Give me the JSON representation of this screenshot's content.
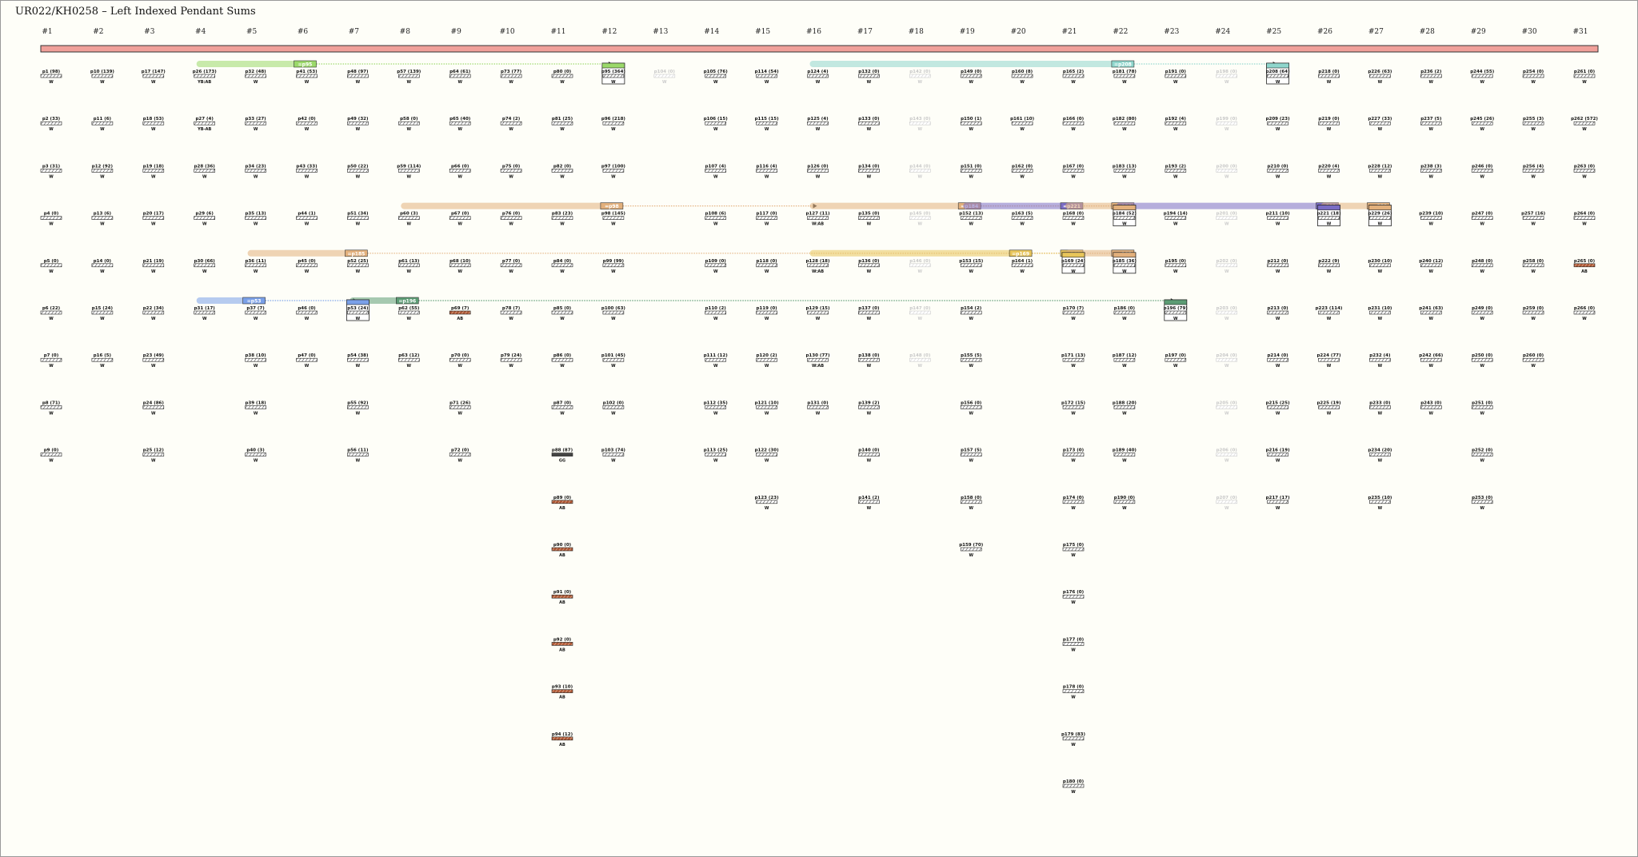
{
  "title": "UR022/KH0258 – Left Indexed Pendant Sums",
  "primary_color": "#f0a09a",
  "col_headers": [
    "#1",
    "#2",
    "#3",
    "#4",
    "#5",
    "#6",
    "#7",
    "#8",
    "#9",
    "#10",
    "#11",
    "#12",
    "#13",
    "#14",
    "#15",
    "#16",
    "#17",
    "#18",
    "#19",
    "#20",
    "#21",
    "#22",
    "#23",
    "#24",
    "#25",
    "#26",
    "#27",
    "#28",
    "#29",
    "#30",
    "#31"
  ],
  "columns": [
    [
      {
        "l": "p1 (98)",
        "c": "w"
      },
      {
        "l": "p2 (33)",
        "c": "w"
      },
      {
        "l": "p3 (31)",
        "c": "w"
      },
      {
        "l": "p4 (0)",
        "c": "w"
      },
      {
        "l": "p5 (0)",
        "c": "w"
      },
      {
        "l": "p6 (22)",
        "c": "w"
      },
      {
        "l": "p7 (0)",
        "c": "w"
      },
      {
        "l": "p8 (71)",
        "c": "w"
      },
      {
        "l": "p9 (0)",
        "c": "w"
      }
    ],
    [
      {
        "l": "p10 (139)",
        "c": "w"
      },
      {
        "l": "p11 (6)",
        "c": "w"
      },
      {
        "l": "p12 (92)",
        "c": "w"
      },
      {
        "l": "p13 (6)",
        "c": "w"
      },
      {
        "l": "p14 (0)",
        "c": "w"
      },
      {
        "l": "p15 (24)",
        "c": "w"
      },
      {
        "l": "p16 (5)",
        "c": "w"
      }
    ],
    [
      {
        "l": "p17 (147)",
        "c": "w"
      },
      {
        "l": "p18 (53)",
        "c": "w"
      },
      {
        "l": "p19 (18)",
        "c": "w"
      },
      {
        "l": "p20 (17)",
        "c": "w"
      },
      {
        "l": "p21 (19)",
        "c": "w"
      },
      {
        "l": "p22 (34)",
        "c": "w"
      },
      {
        "l": "p23 (49)",
        "c": "w"
      },
      {
        "l": "p24 (86)",
        "c": "w"
      },
      {
        "l": "p25 (12)",
        "c": "w"
      }
    ],
    [
      {
        "l": "p26 (173)",
        "c": "YB:AB"
      },
      {
        "l": "p27 (4)",
        "c": "YB-AB"
      },
      {
        "l": "p28 (36)",
        "c": "w"
      },
      {
        "l": "p29 (6)",
        "c": "w"
      },
      {
        "l": "p30 (66)",
        "c": "w"
      },
      {
        "l": "p31 (17)",
        "c": "w"
      }
    ],
    [
      {
        "l": "p32 (48)",
        "c": "w"
      },
      {
        "l": "p33 (27)",
        "c": "w"
      },
      {
        "l": "p34 (23)",
        "c": "w"
      },
      {
        "l": "p35 (13)",
        "c": "w"
      },
      {
        "l": "p36 (11)",
        "c": "w"
      },
      {
        "l": "p37 (7)",
        "c": "w"
      },
      {
        "l": "p38 (10)",
        "c": "w"
      },
      {
        "l": "p39 (18)",
        "c": "w"
      },
      {
        "l": "p40 (3)",
        "c": "w"
      }
    ],
    [
      {
        "l": "p41 (53)",
        "c": "w"
      },
      {
        "l": "p42 (0)",
        "c": "w"
      },
      {
        "l": "p43 (33)",
        "c": "w"
      },
      {
        "l": "p44 (1)",
        "c": "w"
      },
      {
        "l": "p45 (0)",
        "c": "w"
      },
      {
        "l": "p46 (0)",
        "c": "w"
      },
      {
        "l": "p47 (0)",
        "c": "w"
      }
    ],
    [
      {
        "l": "p48 (97)",
        "c": "w"
      },
      {
        "l": "p49 (32)",
        "c": "w"
      },
      {
        "l": "p50 (22)",
        "c": "w"
      },
      {
        "l": "p51 (34)",
        "c": "w"
      },
      {
        "l": "p52 (25)",
        "c": "w"
      },
      {
        "l": "p53 (24)",
        "c": "w"
      },
      {
        "l": "p54 (38)",
        "c": "w"
      },
      {
        "l": "p55 (92)",
        "c": "w"
      },
      {
        "l": "p56 (11)",
        "c": "w"
      }
    ],
    [
      {
        "l": "p57 (139)",
        "c": "w"
      },
      {
        "l": "p58 (0)",
        "c": "w"
      },
      {
        "l": "p59 (114)",
        "c": "w"
      },
      {
        "l": "p60 (3)",
        "c": "w"
      },
      {
        "l": "p61 (13)",
        "c": "w"
      },
      {
        "l": "p62 (55)",
        "c": "w"
      },
      {
        "l": "p63 (12)",
        "c": "w"
      }
    ],
    [
      {
        "l": "p64 (61)",
        "c": "w"
      },
      {
        "l": "p65 (40)",
        "c": "w"
      },
      {
        "l": "p66 (0)",
        "c": "w"
      },
      {
        "l": "p67 (0)",
        "c": "w"
      },
      {
        "l": "p68 (10)",
        "c": "w"
      },
      {
        "l": "p69 (7)",
        "c": "AB"
      },
      {
        "l": "p70 (0)",
        "c": "w"
      },
      {
        "l": "p71 (26)",
        "c": "w"
      },
      {
        "l": "p72 (0)",
        "c": "w"
      }
    ],
    [
      {
        "l": "p73 (77)",
        "c": "w"
      },
      {
        "l": "p74 (2)",
        "c": "w"
      },
      {
        "l": "p75 (0)",
        "c": "w"
      },
      {
        "l": "p76 (0)",
        "c": "w"
      },
      {
        "l": "p77 (0)",
        "c": "w"
      },
      {
        "l": "p78 (7)",
        "c": "w"
      },
      {
        "l": "p79 (24)",
        "c": "w"
      }
    ],
    [
      {
        "l": "p80 (0)",
        "c": "w"
      },
      {
        "l": "p81 (25)",
        "c": "w"
      },
      {
        "l": "p82 (0)",
        "c": "w"
      },
      {
        "l": "p83 (23)",
        "c": "w"
      },
      {
        "l": "p84 (0)",
        "c": "w"
      },
      {
        "l": "p85 (0)",
        "c": "w"
      },
      {
        "l": "p86 (0)",
        "c": "w"
      },
      {
        "l": "p87 (0)",
        "c": "w"
      },
      {
        "l": "p88 (87)",
        "c": "GG"
      },
      {
        "l": "p89 (0)",
        "c": "AB"
      },
      {
        "l": "p90 (0)",
        "c": "AB"
      },
      {
        "l": "p91 (0)",
        "c": "AB"
      },
      {
        "l": "p92 (0)",
        "c": "AB"
      },
      {
        "l": "p93 (10)",
        "c": "AB"
      },
      {
        "l": "p94 (12)",
        "c": "AB"
      }
    ],
    [
      {
        "l": "p95 (364)",
        "c": "w"
      },
      {
        "l": "p96 (218)",
        "c": "w"
      },
      {
        "l": "p97 (100)",
        "c": "w"
      },
      {
        "l": "p98 (145)",
        "c": "w"
      },
      {
        "l": "p99 (99)",
        "c": "w"
      },
      {
        "l": "p100 (63)",
        "c": "w"
      },
      {
        "l": "p101 (45)",
        "c": "w"
      },
      {
        "l": "p102 (0)",
        "c": "w"
      },
      {
        "l": "p103 (74)",
        "c": "w"
      }
    ],
    [
      {
        "l": "p104 (0)",
        "c": "w",
        "g": true
      }
    ],
    [
      {
        "l": "p105 (76)",
        "c": "w"
      },
      {
        "l": "p106 (15)",
        "c": "w"
      },
      {
        "l": "p107 (4)",
        "c": "w"
      },
      {
        "l": "p108 (6)",
        "c": "w"
      },
      {
        "l": "p109 (0)",
        "c": "w"
      },
      {
        "l": "p110 (2)",
        "c": "w"
      },
      {
        "l": "p111 (12)",
        "c": "w"
      },
      {
        "l": "p112 (35)",
        "c": "w"
      },
      {
        "l": "p113 (25)",
        "c": "w"
      }
    ],
    [
      {
        "l": "p114 (54)",
        "c": "w"
      },
      {
        "l": "p115 (15)",
        "c": "w"
      },
      {
        "l": "p116 (4)",
        "c": "w"
      },
      {
        "l": "p117 (0)",
        "c": "w"
      },
      {
        "l": "p118 (0)",
        "c": "w"
      },
      {
        "l": "p119 (0)",
        "c": "w"
      },
      {
        "l": "p120 (2)",
        "c": "w"
      },
      {
        "l": "p121 (10)",
        "c": "w"
      },
      {
        "l": "p122 (30)",
        "c": "w"
      },
      {
        "l": "p123 (23)",
        "c": "w"
      }
    ],
    [
      {
        "l": "p124 (4)",
        "c": "w"
      },
      {
        "l": "p125 (4)",
        "c": "w"
      },
      {
        "l": "p126 (0)",
        "c": "w"
      },
      {
        "l": "p127 (11)",
        "c": "W:AB"
      },
      {
        "l": "p128 (18)",
        "c": "W:AB"
      },
      {
        "l": "p129 (15)",
        "c": "w"
      },
      {
        "l": "p130 (77)",
        "c": "W:AB"
      },
      {
        "l": "p131 (0)",
        "c": "w"
      }
    ],
    [
      {
        "l": "p132 (0)",
        "c": "w"
      },
      {
        "l": "p133 (0)",
        "c": "w"
      },
      {
        "l": "p134 (0)",
        "c": "w"
      },
      {
        "l": "p135 (0)",
        "c": "w"
      },
      {
        "l": "p136 (0)",
        "c": "w"
      },
      {
        "l": "p137 (0)",
        "c": "w"
      },
      {
        "l": "p138 (0)",
        "c": "w"
      },
      {
        "l": "p139 (2)",
        "c": "w"
      },
      {
        "l": "p140 (0)",
        "c": "w"
      },
      {
        "l": "p141 (2)",
        "c": "w"
      }
    ],
    [
      {
        "l": "p142 (0)",
        "c": "w",
        "g": true
      },
      {
        "l": "p143 (0)",
        "c": "w",
        "g": true
      },
      {
        "l": "p144 (0)",
        "c": "w",
        "g": true
      },
      {
        "l": "p145 (0)",
        "c": "w",
        "g": true
      },
      {
        "l": "p146 (0)",
        "c": "w",
        "g": true
      },
      {
        "l": "p147 (0)",
        "c": "w",
        "g": true
      },
      {
        "l": "p148 (0)",
        "c": "w",
        "g": true
      }
    ],
    [
      {
        "l": "p149 (0)",
        "c": "w"
      },
      {
        "l": "p150 (1)",
        "c": "w"
      },
      {
        "l": "p151 (0)",
        "c": "w"
      },
      {
        "l": "p152 (13)",
        "c": "w"
      },
      {
        "l": "p153 (15)",
        "c": "w"
      },
      {
        "l": "p154 (2)",
        "c": "w"
      },
      {
        "l": "p155 (5)",
        "c": "w"
      },
      {
        "l": "p156 (0)",
        "c": "w"
      },
      {
        "l": "p157 (5)",
        "c": "w"
      },
      {
        "l": "p158 (0)",
        "c": "w"
      },
      {
        "l": "p159 (70)",
        "c": "w"
      }
    ],
    [
      {
        "l": "p160 (8)",
        "c": "w"
      },
      {
        "l": "p161 (10)",
        "c": "w"
      },
      {
        "l": "p162 (0)",
        "c": "w"
      },
      {
        "l": "p163 (5)",
        "c": "w"
      },
      {
        "l": "p164 (1)",
        "c": "w"
      }
    ],
    [
      {
        "l": "p165 (2)",
        "c": "w"
      },
      {
        "l": "p166 (0)",
        "c": "w"
      },
      {
        "l": "p167 (0)",
        "c": "w"
      },
      {
        "l": "p168 (0)",
        "c": "w"
      },
      {
        "l": "p169 (24)",
        "c": "w"
      },
      {
        "l": "p170 (7)",
        "c": "w"
      },
      {
        "l": "p171 (13)",
        "c": "w"
      },
      {
        "l": "p172 (15)",
        "c": "w"
      },
      {
        "l": "p173 (0)",
        "c": "w"
      },
      {
        "l": "p174 (0)",
        "c": "w"
      },
      {
        "l": "p175 (0)",
        "c": "w"
      },
      {
        "l": "p176 (0)",
        "c": "w"
      },
      {
        "l": "p177 (0)",
        "c": "w"
      },
      {
        "l": "p178 (0)",
        "c": "w"
      },
      {
        "l": "p179 (83)",
        "c": "w"
      },
      {
        "l": "p180 (0)",
        "c": "w"
      }
    ],
    [
      {
        "l": "p181 (78)",
        "c": "w"
      },
      {
        "l": "p182 (80)",
        "c": "w"
      },
      {
        "l": "p183 (13)",
        "c": "w"
      },
      {
        "l": "p184 (52)",
        "c": "w"
      },
      {
        "l": "p185 (36)",
        "c": "w"
      },
      {
        "l": "p186 (0)",
        "c": "w"
      },
      {
        "l": "p187 (12)",
        "c": "w"
      },
      {
        "l": "p188 (20)",
        "c": "w"
      },
      {
        "l": "p189 (40)",
        "c": "w"
      },
      {
        "l": "p190 (0)",
        "c": "w"
      }
    ],
    [
      {
        "l": "p191 (0)",
        "c": "w"
      },
      {
        "l": "p192 (4)",
        "c": "w"
      },
      {
        "l": "p193 (2)",
        "c": "w"
      },
      {
        "l": "p194 (14)",
        "c": "w"
      },
      {
        "l": "p195 (0)",
        "c": "w"
      },
      {
        "l": "p196 (79)",
        "c": "w"
      },
      {
        "l": "p197 (0)",
        "c": "w"
      }
    ],
    [
      {
        "l": "p198 (0)",
        "c": "w",
        "g": true
      },
      {
        "l": "p199 (0)",
        "c": "w",
        "g": true
      },
      {
        "l": "p200 (0)",
        "c": "w",
        "g": true
      },
      {
        "l": "p201 (0)",
        "c": "w",
        "g": true
      },
      {
        "l": "p202 (0)",
        "c": "w",
        "g": true
      },
      {
        "l": "p203 (0)",
        "c": "w",
        "g": true
      },
      {
        "l": "p204 (0)",
        "c": "w",
        "g": true
      },
      {
        "l": "p205 (0)",
        "c": "w",
        "g": true
      },
      {
        "l": "p206 (0)",
        "c": "w",
        "g": true
      },
      {
        "l": "p207 (0)",
        "c": "w",
        "g": true
      }
    ],
    [
      {
        "l": "p208 (64)",
        "c": "w"
      },
      {
        "l": "p209 (23)",
        "c": "w"
      },
      {
        "l": "p210 (0)",
        "c": "w"
      },
      {
        "l": "p211 (10)",
        "c": "w"
      },
      {
        "l": "p212 (0)",
        "c": "w"
      },
      {
        "l": "p213 (0)",
        "c": "w"
      },
      {
        "l": "p214 (0)",
        "c": "w"
      },
      {
        "l": "p215 (25)",
        "c": "w"
      },
      {
        "l": "p216 (19)",
        "c": "w"
      },
      {
        "l": "p217 (17)",
        "c": "w"
      }
    ],
    [
      {
        "l": "p218 (0)",
        "c": "w"
      },
      {
        "l": "p219 (0)",
        "c": "w"
      },
      {
        "l": "p220 (4)",
        "c": "w"
      },
      {
        "l": "p221 (18)",
        "c": "w"
      },
      {
        "l": "p222 (9)",
        "c": "w"
      },
      {
        "l": "p223 (114)",
        "c": "w"
      },
      {
        "l": "p224 (77)",
        "c": "w"
      },
      {
        "l": "p225 (19)",
        "c": "w"
      }
    ],
    [
      {
        "l": "p226 (63)",
        "c": "w"
      },
      {
        "l": "p227 (33)",
        "c": "w"
      },
      {
        "l": "p228 (12)",
        "c": "w"
      },
      {
        "l": "p229 (26)",
        "c": "w"
      },
      {
        "l": "p230 (10)",
        "c": "w"
      },
      {
        "l": "p231 (10)",
        "c": "w"
      },
      {
        "l": "p232 (4)",
        "c": "w"
      },
      {
        "l": "p233 (0)",
        "c": "w"
      },
      {
        "l": "p234 (20)",
        "c": "w"
      },
      {
        "l": "p235 (10)",
        "c": "w"
      }
    ],
    [
      {
        "l": "p236 (2)",
        "c": "w"
      },
      {
        "l": "p237 (5)",
        "c": "w"
      },
      {
        "l": "p238 (3)",
        "c": "w"
      },
      {
        "l": "p239 (10)",
        "c": "w"
      },
      {
        "l": "p240 (12)",
        "c": "w"
      },
      {
        "l": "p241 (63)",
        "c": "w"
      },
      {
        "l": "p242 (66)",
        "c": "w"
      },
      {
        "l": "p243 (0)",
        "c": "w"
      }
    ],
    [
      {
        "l": "p244 (55)",
        "c": "w"
      },
      {
        "l": "p245 (26)",
        "c": "w"
      },
      {
        "l": "p246 (0)",
        "c": "w"
      },
      {
        "l": "p247 (0)",
        "c": "w"
      },
      {
        "l": "p248 (0)",
        "c": "w"
      },
      {
        "l": "p249 (0)",
        "c": "w"
      },
      {
        "l": "p250 (0)",
        "c": "w"
      },
      {
        "l": "p251 (0)",
        "c": "w"
      },
      {
        "l": "p252 (0)",
        "c": "w"
      },
      {
        "l": "p253 (0)",
        "c": "w"
      }
    ],
    [
      {
        "l": "p254 (0)",
        "c": "w"
      },
      {
        "l": "p255 (3)",
        "c": "w"
      },
      {
        "l": "p256 (4)",
        "c": "w"
      },
      {
        "l": "p257 (16)",
        "c": "w"
      },
      {
        "l": "p258 (0)",
        "c": "w"
      },
      {
        "l": "p259 (0)",
        "c": "w"
      },
      {
        "l": "p260 (0)",
        "c": "w"
      }
    ],
    [
      {
        "l": "p261 (0)",
        "c": "w"
      },
      {
        "l": "p262 (572)",
        "c": "w"
      },
      {
        "l": "p263 (0)",
        "c": "w"
      },
      {
        "l": "p264 (0)",
        "c": "w"
      },
      {
        "l": "p265 (0)",
        "c": "AB"
      },
      {
        "l": "p266 (0)",
        "c": "w"
      }
    ]
  ],
  "links": [
    {
      "label": "=p95",
      "color": "#9bd96a",
      "row": 0,
      "from": 3,
      "to": 11,
      "chip": 5
    },
    {
      "label": "=p208",
      "color": "#8fd6cc",
      "row": 0,
      "from": 15,
      "to": 24,
      "chip": 21
    },
    {
      "label": "=p98",
      "color": "#e2b07c",
      "row": 3,
      "from": 7,
      "to": 15,
      "chip": 11
    },
    {
      "label": "=p184",
      "color": "#e2b07c",
      "row": 3,
      "from": 15,
      "to": 21,
      "chip": 18
    },
    {
      "label": "=p221",
      "color": "#7a6cc4",
      "row": 3,
      "from": 18,
      "to": 20,
      "chip": 20
    },
    {
      "label": "=p184",
      "color": "#e2b07c",
      "row": 3,
      "from": 20,
      "to": 21,
      "chip": 21
    },
    {
      "label": "=p221",
      "color": "#7a6cc4",
      "row": 3,
      "from": 21,
      "to": 25,
      "chip": 25
    },
    {
      "label": "=p229",
      "color": "#e2b07c",
      "row": 3,
      "from": 25,
      "to": 26,
      "chip": 26
    },
    {
      "label": "=p185",
      "color": "#e2b07c",
      "row": 4,
      "from": 4,
      "to": 21,
      "chip": 6
    },
    {
      "label": "=p169",
      "color": "#e8c55a",
      "row": 4,
      "from": 15,
      "to": 20,
      "chip": 19
    },
    {
      "label": "=p169",
      "color": "#e8c55a",
      "row": 4,
      "from": 20,
      "to": 20,
      "chip": 20
    },
    {
      "label": "=p185",
      "color": "#e2b07c",
      "row": 4,
      "from": 20,
      "to": 21,
      "chip": 21
    },
    {
      "label": "=p53",
      "color": "#7aa0e8",
      "row": 5,
      "from": 3,
      "to": 6,
      "chip": 4
    },
    {
      "label": "=p196",
      "color": "#5c9c74",
      "row": 5,
      "from": 6,
      "to": 22,
      "chip": 7
    }
  ],
  "boxed_nodes": [
    {
      "col": 11,
      "row": 0,
      "color": "#9bd96a",
      "label": "=p95"
    },
    {
      "col": 24,
      "row": 0,
      "color": "#8fd6cc",
      "label": "=p208"
    },
    {
      "col": 21,
      "row": 3,
      "color": "#e2b07c",
      "label": "=p184"
    },
    {
      "col": 25,
      "row": 3,
      "color": "#7a6cc4",
      "label": "=p221"
    },
    {
      "col": 26,
      "row": 3,
      "color": "#e2b07c",
      "label": "=p229"
    },
    {
      "col": 20,
      "row": 4,
      "color": "#e8c55a",
      "label": "=p169"
    },
    {
      "col": 21,
      "row": 4,
      "color": "#e2b07c",
      "label": "=p185"
    },
    {
      "col": 6,
      "row": 5,
      "color": "#7aa0e8",
      "label": "=p53"
    },
    {
      "col": 22,
      "row": 5,
      "color": "#5c9c74",
      "label": "=p196"
    }
  ]
}
